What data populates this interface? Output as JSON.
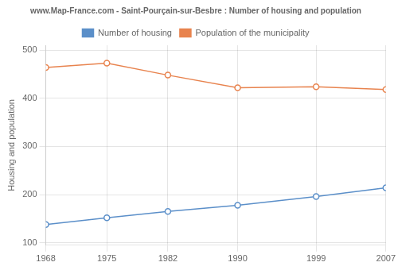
{
  "chart_data": {
    "type": "line",
    "title": "www.Map-France.com - Saint-Pourçain-sur-Besbre : Number of housing and population",
    "x": [
      1968,
      1975,
      1982,
      1990,
      1999,
      2007
    ],
    "series": [
      {
        "name": "Number of housing",
        "color": "#5b8fc9",
        "values": [
          138,
          152,
          165,
          178,
          196,
          214
        ],
        "marker": "circle"
      },
      {
        "name": "Population of the municipality",
        "color": "#e8834e",
        "values": [
          464,
          473,
          448,
          422,
          424,
          418
        ],
        "marker": "circle"
      }
    ],
    "ylabel": "Housing and population",
    "xlim": [
      1968,
      2007
    ],
    "xticks": [
      1968,
      1975,
      1982,
      1990,
      1999,
      2007
    ],
    "ylim": [
      95,
      510
    ],
    "yticks": [
      100,
      200,
      300,
      400,
      500
    ],
    "grid": true,
    "legend": "top"
  }
}
